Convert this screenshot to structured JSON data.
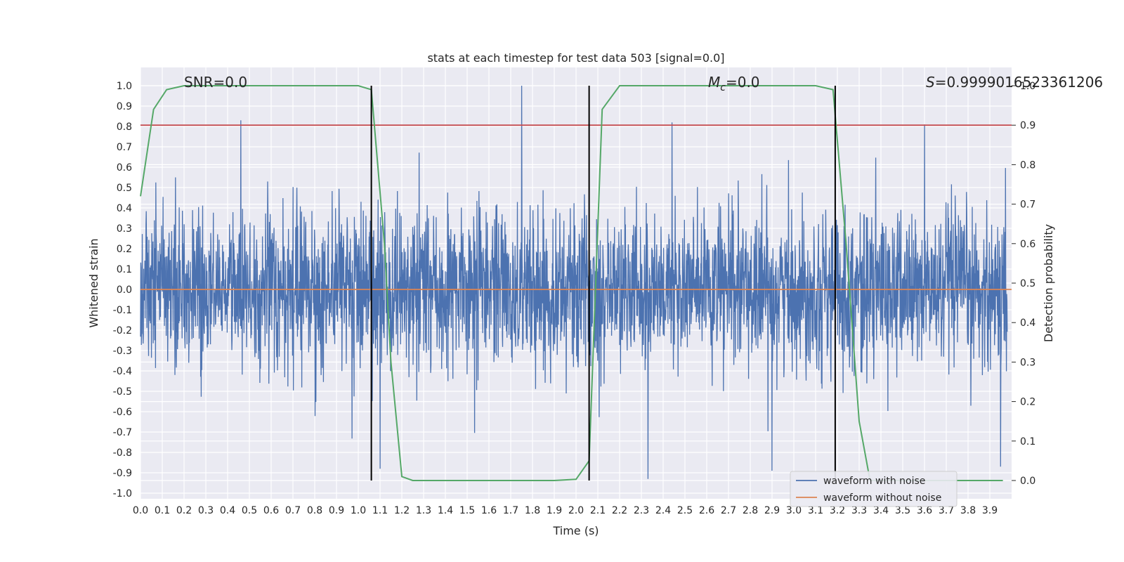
{
  "chart_data": {
    "type": "line",
    "title": "stats at each timestep for test data 503 [signal=0.0]",
    "xlabel": "Time (s)",
    "ylabel": "Whitened strain",
    "y2label": "Detection probability",
    "xlim": [
      0.0,
      4.0
    ],
    "ylim": [
      -1.05,
      1.1
    ],
    "y2lim": [
      -0.05,
      1.01
    ],
    "x_ticks": [
      "0.0",
      "0.1",
      "0.2",
      "0.3",
      "0.4",
      "0.5",
      "0.6",
      "0.7",
      "0.8",
      "0.9",
      "1.0",
      "1.1",
      "1.2",
      "1.3",
      "1.4",
      "1.5",
      "1.6",
      "1.7",
      "1.8",
      "1.9",
      "2.0",
      "2.1",
      "2.2",
      "2.3",
      "2.4",
      "2.5",
      "2.6",
      "2.7",
      "2.8",
      "2.9",
      "3.0",
      "3.1",
      "3.2",
      "3.3",
      "3.4",
      "3.5",
      "3.6",
      "3.7",
      "3.8",
      "3.9"
    ],
    "y_ticks": [
      "1.0",
      "0.9",
      "0.8",
      "0.7",
      "0.6",
      "0.5",
      "0.4",
      "0.3",
      "0.2",
      "0.1",
      "0.0",
      "-0.1",
      "-0.2",
      "-0.3",
      "-0.4",
      "-0.5",
      "-0.6",
      "-0.7",
      "-0.8",
      "-0.9",
      "-1.0"
    ],
    "y2_ticks": [
      "1.0",
      "0.9",
      "0.8",
      "0.7",
      "0.6",
      "0.5",
      "0.4",
      "0.3",
      "0.2",
      "0.1",
      "0.0"
    ],
    "grid": true,
    "legend_position": "lower-right",
    "annotations": {
      "snr": "SNR=0.0",
      "mc_symbol": "M",
      "mc_sub": "c",
      "mc_value": "=0.0",
      "s_symbol": "S",
      "s_value": "=0.9999016523361206"
    },
    "series": [
      {
        "name": "waveform with noise",
        "color": "#4c72b0",
        "description_of_shape": "dense noise oscillating roughly within -0.9 to 1.0",
        "envelope_typical": [
          -0.4,
          0.45
        ],
        "notable_peaks": [
          {
            "x": 0.46,
            "y": 0.83
          },
          {
            "x": 1.75,
            "y": 1.0
          },
          {
            "x": 2.44,
            "y": 0.82
          },
          {
            "x": 2.33,
            "y": -0.93
          },
          {
            "x": 1.1,
            "y": -0.88
          },
          {
            "x": 2.9,
            "y": -0.89
          },
          {
            "x": 3.6,
            "y": 0.81
          },
          {
            "x": 3.95,
            "y": -0.87
          }
        ]
      },
      {
        "name": "waveform without noise",
        "color": "#dd8452",
        "x": [
          0.0,
          4.0
        ],
        "values": [
          0.0,
          0.0
        ]
      },
      {
        "axis": "right",
        "color": "#55a868",
        "x": [
          0.0,
          0.06,
          0.12,
          0.2,
          0.3,
          1.0,
          1.06,
          1.12,
          1.15,
          1.2,
          1.25,
          1.9,
          2.0,
          2.06,
          2.12,
          2.2,
          3.1,
          3.18,
          3.24,
          3.3,
          3.35,
          3.96
        ],
        "values": [
          0.72,
          0.94,
          0.99,
          1.0,
          1.0,
          1.0,
          0.99,
          0.6,
          0.3,
          0.01,
          0.0,
          0.0,
          0.003,
          0.05,
          0.94,
          1.0,
          1.0,
          0.99,
          0.6,
          0.15,
          0.0,
          0.0
        ]
      }
    ],
    "threshold_line": {
      "axis": "right",
      "value": 0.9,
      "color": "#c44e52"
    },
    "vertical_lines": [
      1.06,
      2.06,
      3.19
    ]
  }
}
